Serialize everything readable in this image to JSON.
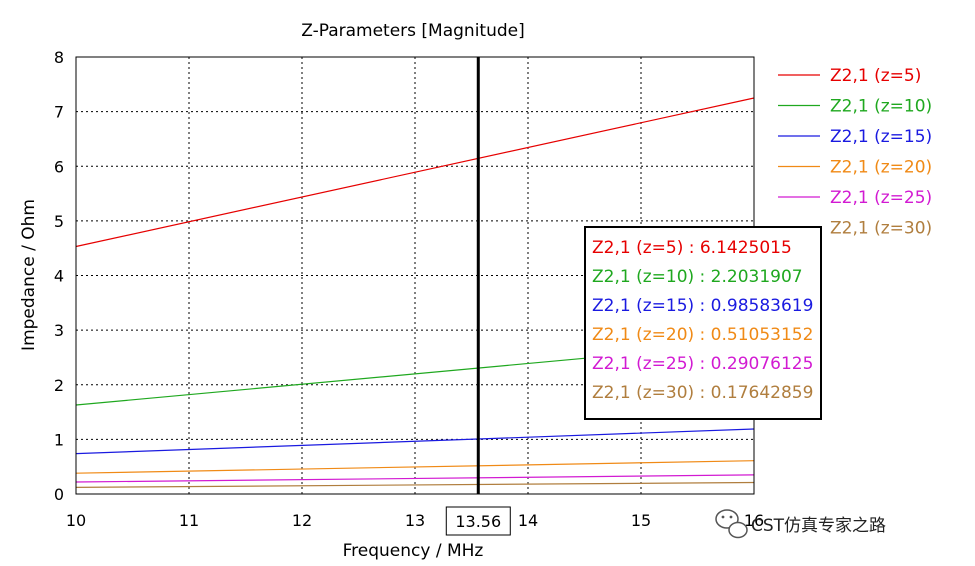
{
  "chart_data": {
    "type": "line",
    "title": "Z-Parameters [Magnitude]",
    "xlabel": "Frequency / MHz",
    "ylabel": "Impedance / Ohm",
    "xlim": [
      10,
      16
    ],
    "ylim": [
      0,
      8
    ],
    "grid": true,
    "legend_position": "right",
    "x_ticks": [
      "10",
      "11",
      "12",
      "13",
      "14",
      "15",
      "16"
    ],
    "y_ticks": [
      "0",
      "1",
      "2",
      "3",
      "4",
      "5",
      "6",
      "7",
      "8"
    ],
    "marker": {
      "x": 13.56,
      "label": "13.56"
    },
    "x": [
      10,
      16
    ],
    "series": [
      {
        "name": "Z2,1 (z=5)",
        "color": "#e60000",
        "values": [
          4.53,
          7.25
        ],
        "marker_value": "6.1425015"
      },
      {
        "name": "Z2,1 (z=10)",
        "color": "#1fa81f",
        "values": [
          1.63,
          2.77
        ],
        "marker_value": "2.2031907"
      },
      {
        "name": "Z2,1 (z=15)",
        "color": "#1a1ae0",
        "values": [
          0.74,
          1.19
        ],
        "marker_value": "0.98583619"
      },
      {
        "name": "Z2,1 (z=20)",
        "color": "#f08a16",
        "values": [
          0.38,
          0.61
        ],
        "marker_value": "0.51053152"
      },
      {
        "name": "Z2,1 (z=25)",
        "color": "#d21ad2",
        "values": [
          0.22,
          0.35
        ],
        "marker_value": "0.29076125"
      },
      {
        "name": "Z2,1 (z=30)",
        "color": "#b07e3e",
        "values": [
          0.12,
          0.21
        ],
        "marker_value": "0.17642859"
      }
    ]
  },
  "watermark": {
    "text": "CST仿真专家之路",
    "icon": "wechat-icon"
  }
}
